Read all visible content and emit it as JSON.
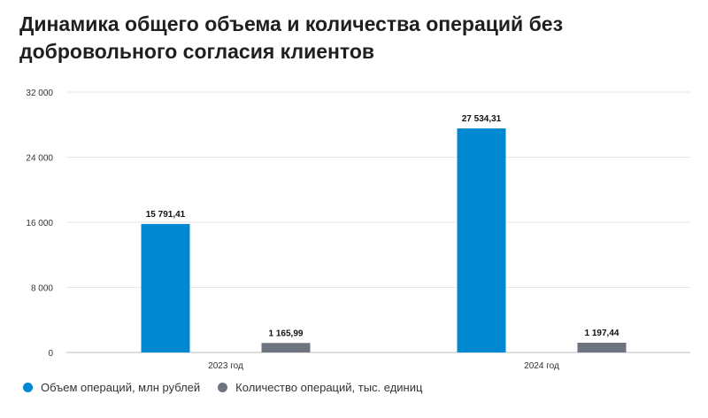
{
  "chart_data": {
    "type": "bar",
    "title": "Динамика общего объема и количества операций без добровольного согласия клиентов",
    "categories": [
      "2023 год",
      "2024 год"
    ],
    "series": [
      {
        "name": "Объем операций, млн рублей",
        "values": [
          15791.41,
          27534.31
        ],
        "labels": [
          "15 791,41",
          "27 534,31"
        ],
        "color": "#0088D1"
      },
      {
        "name": "Количество операций, тыс. единиц",
        "values": [
          1165.99,
          1197.44
        ],
        "labels": [
          "1 165,99",
          "1 197,44"
        ],
        "color": "#6D7480"
      }
    ],
    "yticks": [
      0,
      8000,
      16000,
      24000,
      32000
    ],
    "ytick_labels": [
      "0",
      "8 000",
      "16 000",
      "24 000",
      "32 000"
    ],
    "ylim": [
      0,
      32000
    ],
    "xlabel": "",
    "ylabel": "",
    "grid": true,
    "legend_position": "bottom-left",
    "gridline_color": "#E6E6E6"
  }
}
